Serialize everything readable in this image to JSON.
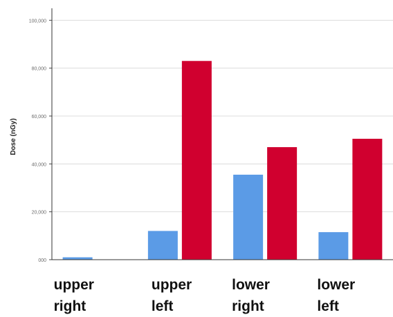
{
  "chart_data": {
    "type": "bar",
    "title": "",
    "xlabel": "",
    "ylabel": "Dose (nGy)",
    "categories": [
      "upper\nright",
      "upper\nleft",
      "lower\nright",
      "lower\nleft"
    ],
    "category_lines": [
      [
        "upper",
        "right"
      ],
      [
        "upper",
        "left"
      ],
      [
        "lower",
        "right"
      ],
      [
        "lower",
        "left"
      ]
    ],
    "series": [
      {
        "color": "#5b9be6",
        "values": [
          1,
          12,
          35.5,
          11.5
        ]
      },
      {
        "color": "#d0002f",
        "values": [
          0,
          83,
          47,
          50.5
        ]
      }
    ],
    "ylim": [
      0,
      105
    ],
    "yticks": [
      0,
      20,
      40,
      60,
      80,
      100
    ],
    "ytick_labels": [
      "000",
      "20,000",
      "40,000",
      "60,000",
      "80,000",
      "100,000"
    ],
    "grid": true,
    "legend": "none"
  }
}
